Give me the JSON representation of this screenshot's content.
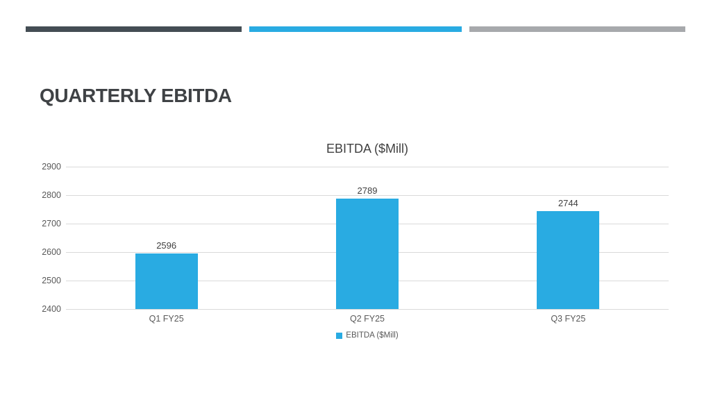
{
  "slide": {
    "title": "QUARTERLY EBITDA",
    "accent_bars": [
      {
        "name": "dark-bar",
        "color": "#444d54"
      },
      {
        "name": "blue-bar",
        "color": "#29abe2"
      },
      {
        "name": "gray-bar",
        "color": "#a7a9ac"
      }
    ]
  },
  "chart_data": {
    "type": "bar",
    "title": "EBITDA ($Mill)",
    "categories": [
      "Q1 FY25",
      "Q2 FY25",
      "Q3 FY25"
    ],
    "series": [
      {
        "name": "EBITDA ($Mill)",
        "color": "#29abe2",
        "values": [
          2596,
          2789,
          2744
        ]
      }
    ],
    "ylim": [
      2400,
      2900
    ],
    "yticks": [
      2400,
      2500,
      2600,
      2700,
      2800,
      2900
    ],
    "grid": true,
    "data_labels": true,
    "legend_position": "bottom",
    "gridline_color": "#d9d9d9",
    "axis_text_color": "#595959",
    "label_text_color": "#404040"
  }
}
